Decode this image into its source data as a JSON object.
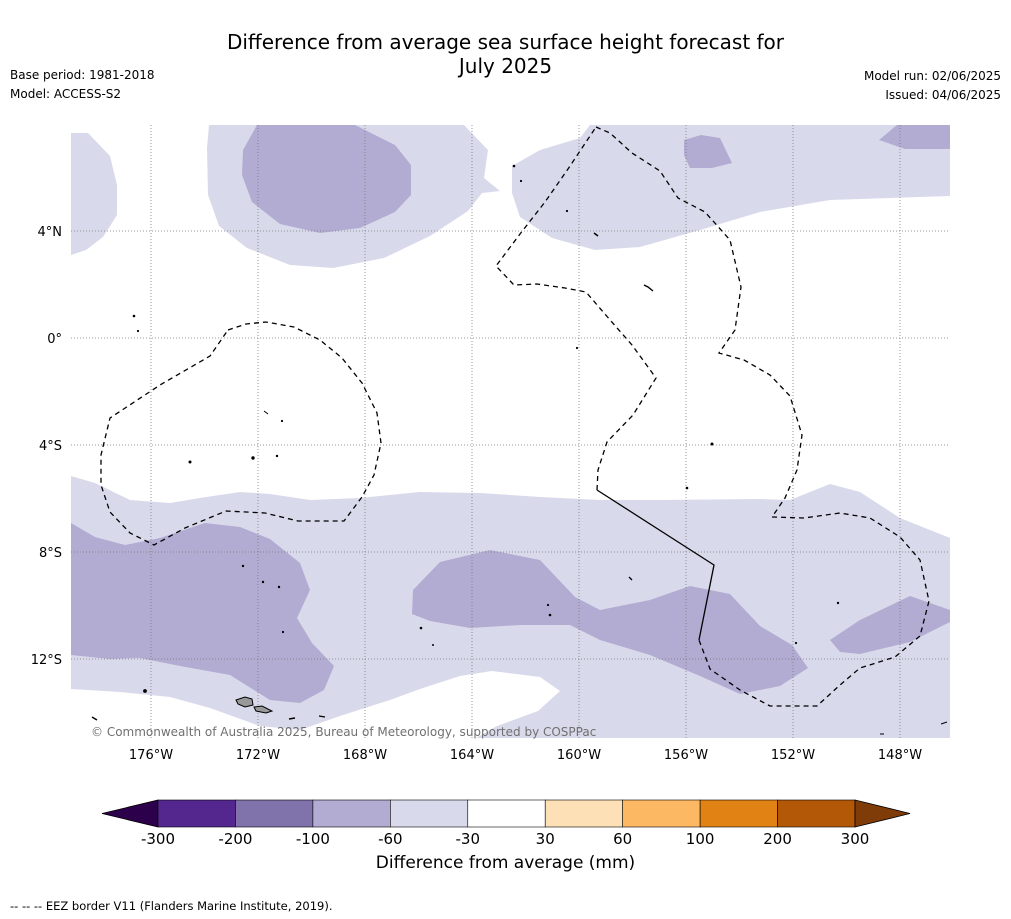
{
  "title_line1": "Difference from average sea surface height forecast for",
  "title_line2": "July 2025",
  "meta_left": {
    "base_period": "Base period: 1981-2018",
    "model": "Model: ACCESS-S2"
  },
  "meta_right": {
    "model_run": "Model run: 02/06/2025",
    "issued": "Issued: 04/06/2025"
  },
  "copyright": "© Commonwealth of Australia 2025, Bureau of Meteorology, supported by COSPPac",
  "map": {
    "lon_range": [
      -179,
      -146
    ],
    "lat_range": [
      -15,
      8
    ],
    "lat_ticks": [
      {
        "lat": 4,
        "label": "4°N"
      },
      {
        "lat": 0,
        "label": "0°"
      },
      {
        "lat": -4,
        "label": "4°S"
      },
      {
        "lat": -8,
        "label": "8°S"
      },
      {
        "lat": -12,
        "label": "12°S"
      }
    ],
    "lon_ticks": [
      {
        "lon": -176,
        "label": "176°W"
      },
      {
        "lon": -172,
        "label": "172°W"
      },
      {
        "lon": -168,
        "label": "168°W"
      },
      {
        "lon": -164,
        "label": "164°W"
      },
      {
        "lon": -160,
        "label": "160°W"
      },
      {
        "lon": -156,
        "label": "156°W"
      },
      {
        "lon": -152,
        "label": "152°W"
      },
      {
        "lon": -148,
        "label": "148°W"
      }
    ],
    "grid": true
  },
  "colorbar": {
    "label": "Difference from average (mm)",
    "ticks": [
      "-300",
      "-200",
      "-100",
      "-60",
      "-30",
      "30",
      "60",
      "100",
      "200",
      "300"
    ],
    "colors": [
      "#54278f",
      "#8073ac",
      "#b2abd2",
      "#d8daeb",
      "#ffffff",
      "#fee0b6",
      "#fdb863",
      "#e08214",
      "#b35806"
    ],
    "extend_low": "#2d004b",
    "extend_high": "#7f3b08"
  },
  "colors": {
    "light_purple": "#d8daeb",
    "mid_purple": "#b2abd2",
    "land": "#999999"
  },
  "footnote": "--  --  -- EEZ border V11 (Flanders Marine Institute, 2019)."
}
